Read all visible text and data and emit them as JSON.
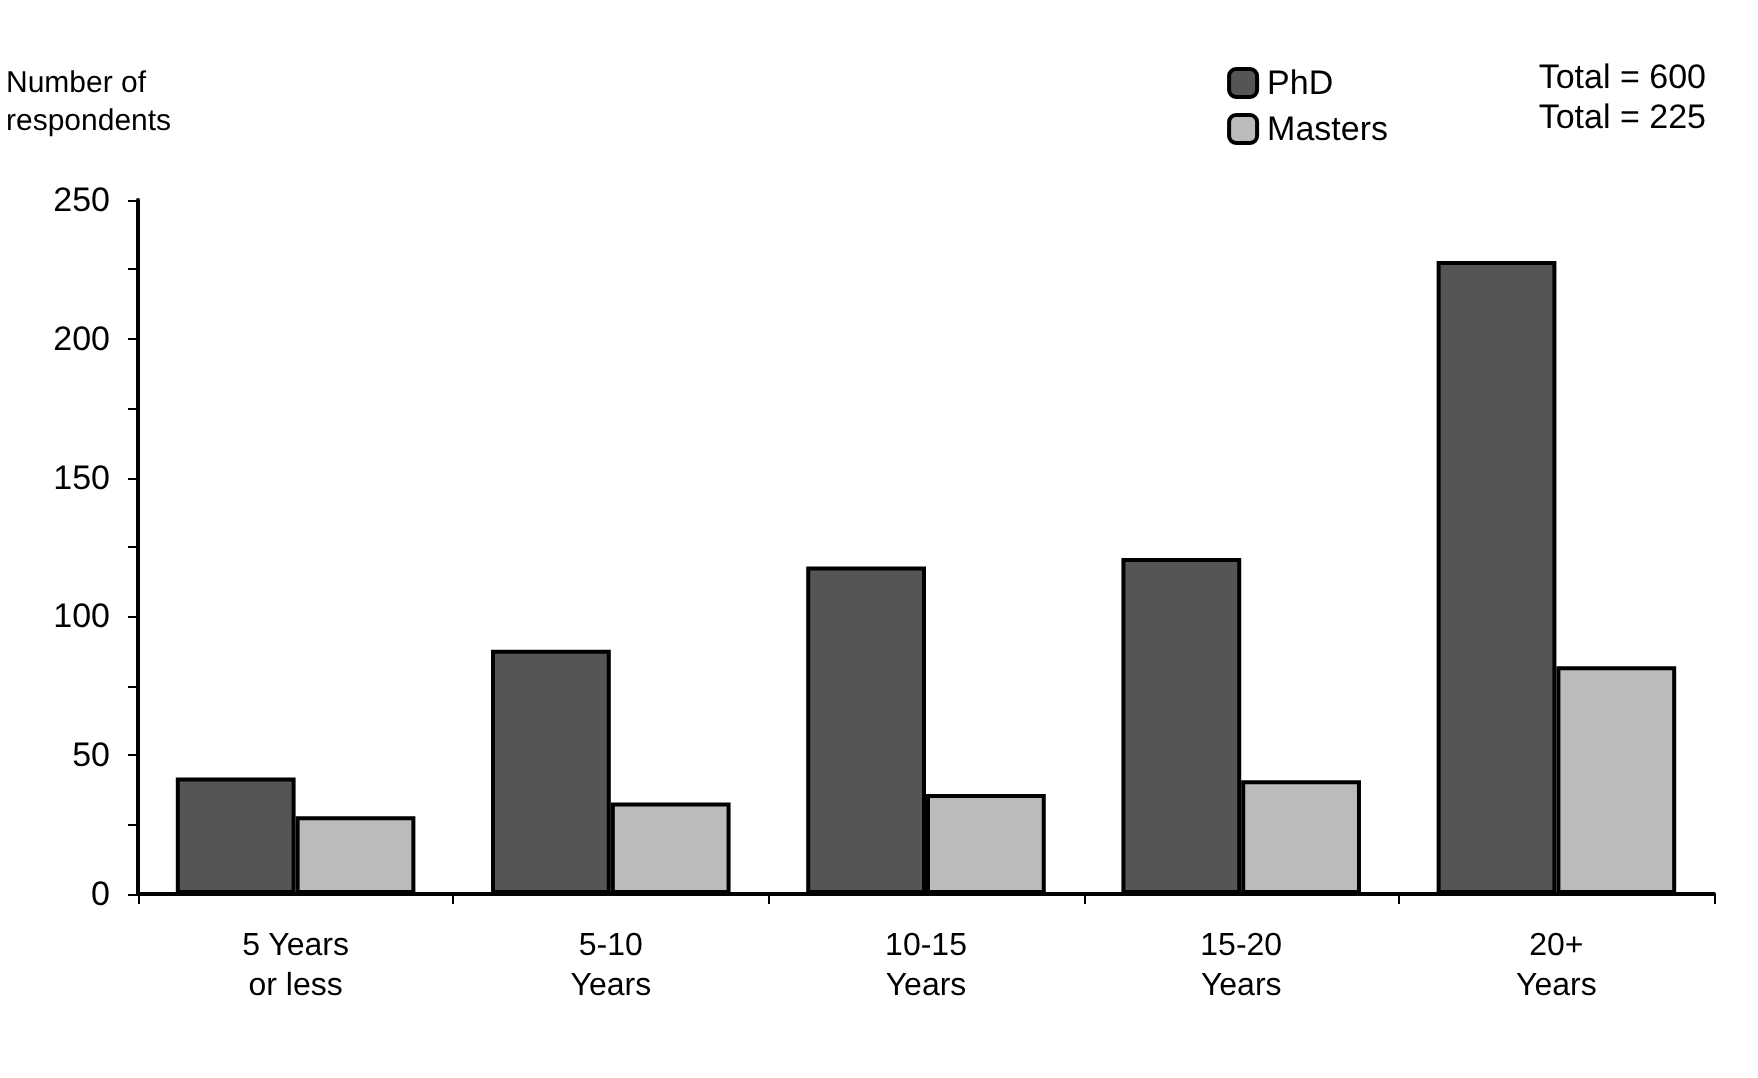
{
  "chart_data": {
    "type": "bar",
    "ylabel": "Number of\nrespondents",
    "categories": [
      "5 Years\nor less",
      "5-10\nYears",
      "10-15\nYears",
      "15-20\nYears",
      "20+\nYears"
    ],
    "series": [
      {
        "name": "PhD",
        "color": "#555555",
        "values": [
          42,
          88,
          118,
          121,
          228
        ]
      },
      {
        "name": "Masters",
        "color": "#bbbbbb",
        "values": [
          28,
          33,
          36,
          41,
          82
        ]
      }
    ],
    "ylim": [
      0,
      250
    ],
    "yticks": [
      0,
      {
        "value": 25,
        "label": null
      },
      50,
      {
        "value": 75,
        "label": null
      },
      100,
      {
        "value": 125,
        "label": null
      },
      150,
      {
        "value": 175,
        "label": null
      },
      200,
      {
        "value": 225,
        "label": null
      },
      250
    ],
    "annotations": [
      "Total = 600",
      "Total = 225"
    ],
    "legend": "top right",
    "grid": false
  }
}
